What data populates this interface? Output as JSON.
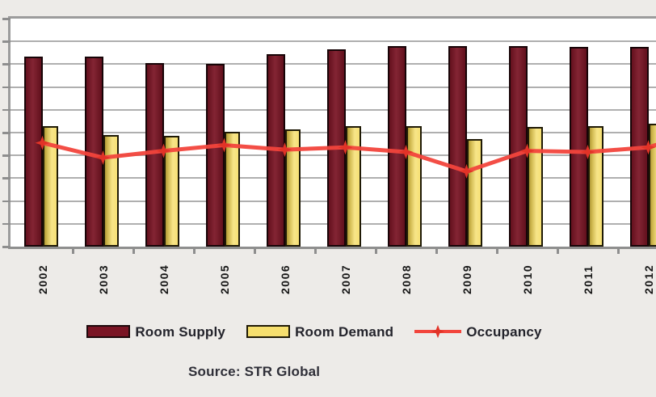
{
  "page": {
    "background": "#EDEBE8"
  },
  "chart": {
    "source_text": "Source: STR Global"
  },
  "chart_data": {
    "type": "combo",
    "title": "",
    "categories": [
      "2002",
      "2003",
      "2004",
      "2005",
      "2006",
      "2007",
      "2008",
      "2009",
      "2010",
      "2011",
      "2012"
    ],
    "series": [
      {
        "name": "Room Supply",
        "type": "bar",
        "color": "#7A1424",
        "values": [
          83.5,
          83.5,
          80.5,
          80,
          84.5,
          86.5,
          88,
          88,
          88,
          87.5,
          87.5
        ]
      },
      {
        "name": "Room Demand",
        "type": "bar",
        "color": "#F6DF6E",
        "values": [
          53,
          49,
          48.5,
          50.5,
          51.5,
          53,
          53,
          47,
          52.5,
          53,
          54
        ]
      },
      {
        "name": "Occupancy",
        "type": "line",
        "color": "#F2453C",
        "marker_color": "#E23327",
        "values": [
          45.5,
          39,
          42,
          44.5,
          42.5,
          43.5,
          41.5,
          33,
          42,
          41.5,
          43.5
        ]
      }
    ],
    "ylim": [
      0,
      100
    ],
    "y_divisions": 10,
    "y_axis_labels_visible": false,
    "values_unit": "percent of plot height (axis value labels cropped out of frame)",
    "grid": true,
    "legend_position": "bottom",
    "x_labels_rotated": true
  }
}
